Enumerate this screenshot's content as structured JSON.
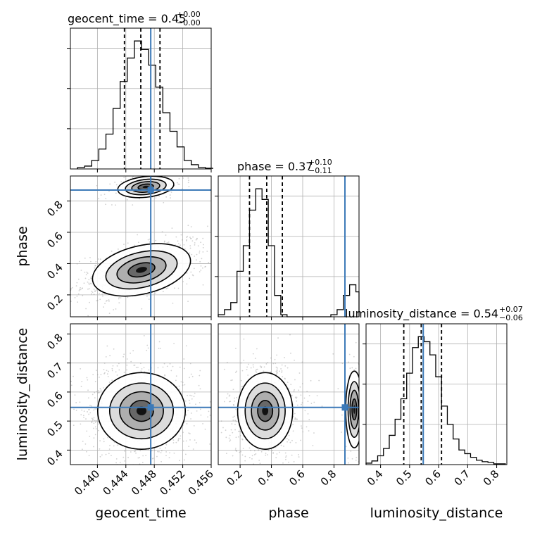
{
  "figure": {
    "colors": {
      "truth": "#3d7ab8",
      "hist": "#000000",
      "scatter": "#9a9a9a",
      "grid": "#b0b0b0"
    }
  },
  "chart_data": {
    "type": "corner",
    "parameters": [
      "geocent_time",
      "phase",
      "luminosity_distance"
    ],
    "truths": {
      "geocent_time": 0.4475,
      "phase": 0.87,
      "luminosity_distance": 0.547
    },
    "titles": [
      {
        "param": "geocent_time",
        "main": "geocent_time = 0.45",
        "sup": "+0.00",
        "sub": "−0.00"
      },
      {
        "param": "phase",
        "main": "phase = 0.37",
        "sup": "+0.10",
        "sub": "−0.11"
      },
      {
        "param": "luminosity_distance",
        "main": "luminosity_distance = 0.54",
        "sup": "+0.07",
        "sub": "−0.06"
      }
    ],
    "axes": {
      "geocent_time": {
        "range": [
          0.4362,
          0.456
        ],
        "ticks": [
          0.44,
          0.444,
          0.448,
          0.452,
          0.456
        ],
        "tick_labels": [
          "0.440",
          "0.444",
          "0.448",
          "0.452",
          "0.456"
        ],
        "label": "geocent_time"
      },
      "phase": {
        "range": [
          0.06,
          0.96
        ],
        "ticks": [
          0.2,
          0.4,
          0.6,
          0.8
        ],
        "tick_labels": [
          "0.2",
          "0.4",
          "0.6",
          "0.8"
        ],
        "label": "phase"
      },
      "luminosity_distance": {
        "range": [
          0.35,
          0.835
        ],
        "ticks": [
          0.4,
          0.5,
          0.6,
          0.7,
          0.8
        ],
        "tick_labels": [
          "0.4",
          "0.5",
          "0.6",
          "0.7",
          "0.8"
        ],
        "label": "luminosity_distance"
      }
    },
    "histograms": [
      {
        "param": "geocent_time",
        "bin_edges": [
          0.4372,
          0.4382,
          0.4392,
          0.4402,
          0.4412,
          0.4422,
          0.4432,
          0.4442,
          0.4452,
          0.4462,
          0.4472,
          0.4482,
          0.4492,
          0.4502,
          0.4512,
          0.4522,
          0.4532,
          0.4542,
          0.4552,
          0.4562
        ],
        "counts": [
          2,
          4,
          12,
          28,
          49,
          85,
          123,
          156,
          180,
          168,
          146,
          115,
          79,
          53,
          31,
          12,
          6,
          2,
          1
        ],
        "quantiles": [
          0.4438,
          0.4461,
          0.4488
        ]
      },
      {
        "param": "phase",
        "bin_edges": [
          0.06,
          0.1,
          0.14,
          0.18,
          0.22,
          0.26,
          0.3,
          0.34,
          0.38,
          0.42,
          0.46,
          0.5,
          0.54,
          0.58,
          0.62,
          0.66,
          0.7,
          0.74,
          0.78,
          0.82,
          0.86,
          0.9,
          0.94,
          0.96
        ],
        "counts": [
          3,
          10,
          20,
          64,
          100,
          150,
          180,
          165,
          100,
          30,
          3,
          0,
          0,
          0,
          0,
          0,
          0,
          0,
          3,
          10,
          30,
          45,
          35
        ],
        "quantiles": [
          0.26,
          0.37,
          0.47
        ]
      },
      {
        "param": "luminosity_distance",
        "bin_edges": [
          0.35,
          0.37,
          0.39,
          0.41,
          0.43,
          0.45,
          0.47,
          0.49,
          0.51,
          0.53,
          0.55,
          0.57,
          0.59,
          0.61,
          0.63,
          0.65,
          0.67,
          0.69,
          0.71,
          0.73,
          0.75,
          0.77,
          0.79,
          0.81,
          0.83
        ],
        "counts": [
          2,
          5,
          12,
          22,
          40,
          62,
          90,
          125,
          160,
          175,
          168,
          150,
          120,
          80,
          55,
          35,
          20,
          15,
          10,
          6,
          4,
          3,
          1,
          1
        ],
        "quantiles": [
          0.48,
          0.54,
          0.61
        ]
      }
    ],
    "correlations": [
      {
        "x": "geocent_time",
        "y": "phase",
        "modes": [
          {
            "center": [
              0.4462,
              0.36
            ],
            "spread": [
              0.0032,
              0.07
            ],
            "rho": 0.5,
            "weight": 0.8
          },
          {
            "center": [
              0.4468,
              0.89
            ],
            "spread": [
              0.0018,
              0.03
            ],
            "rho": 0.3,
            "weight": 0.2
          }
        ]
      },
      {
        "x": "geocent_time",
        "y": "luminosity_distance",
        "modes": [
          {
            "center": [
              0.4462,
              0.535
            ],
            "spread": [
              0.0028,
              0.06
            ],
            "rho": 0.0,
            "weight": 1.0
          }
        ]
      },
      {
        "x": "phase",
        "y": "luminosity_distance",
        "modes": [
          {
            "center": [
              0.36,
              0.535
            ],
            "spread": [
              0.08,
              0.06
            ],
            "rho": 0.0,
            "weight": 0.85
          },
          {
            "center": [
              0.93,
              0.54
            ],
            "spread": [
              0.025,
              0.06
            ],
            "rho": 0.0,
            "weight": 0.15
          }
        ]
      }
    ]
  }
}
